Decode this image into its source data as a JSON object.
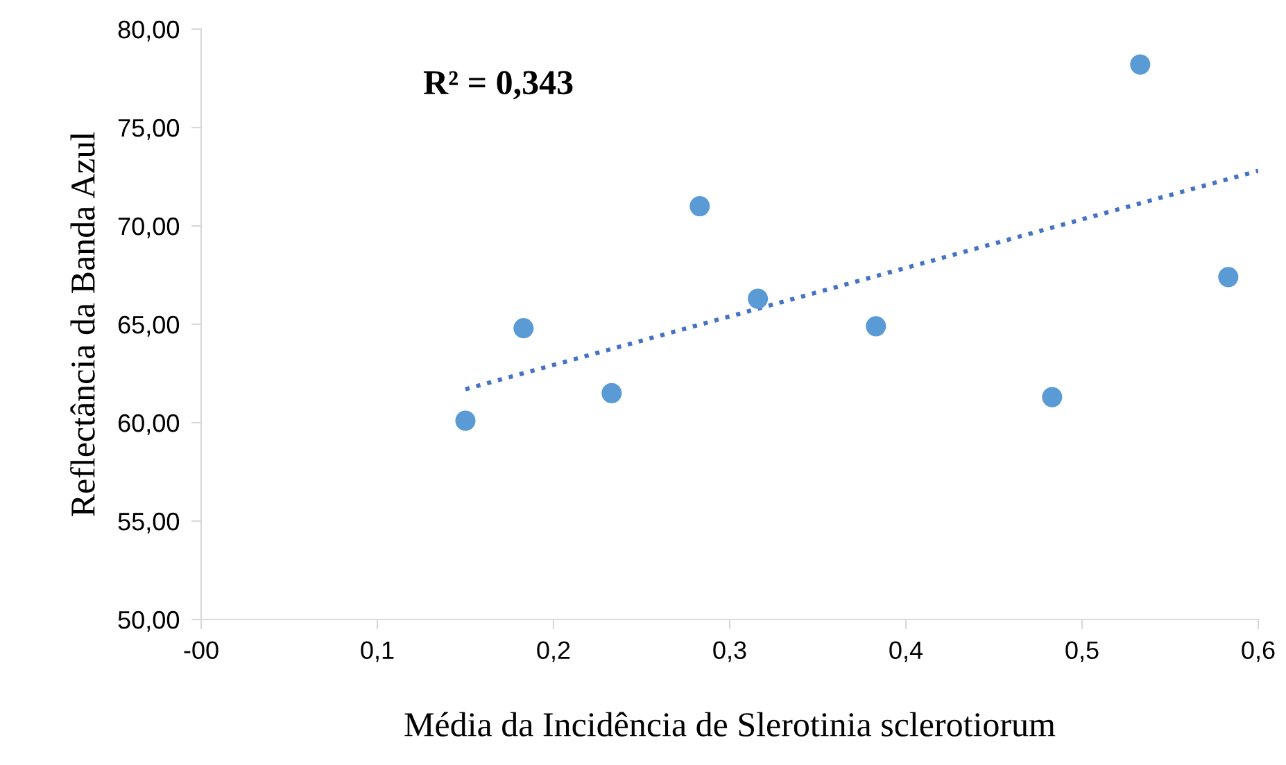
{
  "chart_data": {
    "type": "scatter",
    "xlabel": "Média da Incidência de Slerotinia sclerotiorum",
    "ylabel": "Reflectância da Banda Azul",
    "annotations": [
      "R² = 0,343"
    ],
    "series": [
      {
        "color": "#5b9bd5",
        "marker": "circle",
        "x": [
          0.15,
          0.183,
          0.233,
          0.283,
          0.316,
          0.383,
          0.483,
          0.533,
          0.583
        ],
        "values": [
          60.1,
          64.8,
          61.5,
          71.0,
          66.3,
          64.9,
          61.3,
          78.2,
          67.4
        ]
      },
      {
        "type": "line",
        "color": "#4472c4",
        "line_style": "dotted",
        "marker": "none",
        "x": [
          0.15,
          0.6
        ],
        "values": [
          61.7,
          72.8
        ]
      }
    ],
    "xlim": [
      0,
      0.6
    ],
    "xticks": [
      {
        "value": 0,
        "label": "-00"
      },
      {
        "value": 0.1,
        "label": "0,1"
      },
      {
        "value": 0.2,
        "label": "0,2"
      },
      {
        "value": 0.3,
        "label": "0,3"
      },
      {
        "value": 0.4,
        "label": "0,4"
      },
      {
        "value": 0.5,
        "label": "0,5"
      },
      {
        "value": 0.6,
        "label": "0,6"
      }
    ],
    "ylim": [
      50,
      80
    ],
    "yticks": [
      {
        "value": 50,
        "label": "50,00"
      },
      {
        "value": 55,
        "label": "55,00"
      },
      {
        "value": 60,
        "label": "60,00"
      },
      {
        "value": 65,
        "label": "65,00"
      },
      {
        "value": 70,
        "label": "70,00"
      },
      {
        "value": 75,
        "label": "75,00"
      },
      {
        "value": 80,
        "label": "80,00"
      }
    ],
    "grid": false,
    "legend": false
  }
}
